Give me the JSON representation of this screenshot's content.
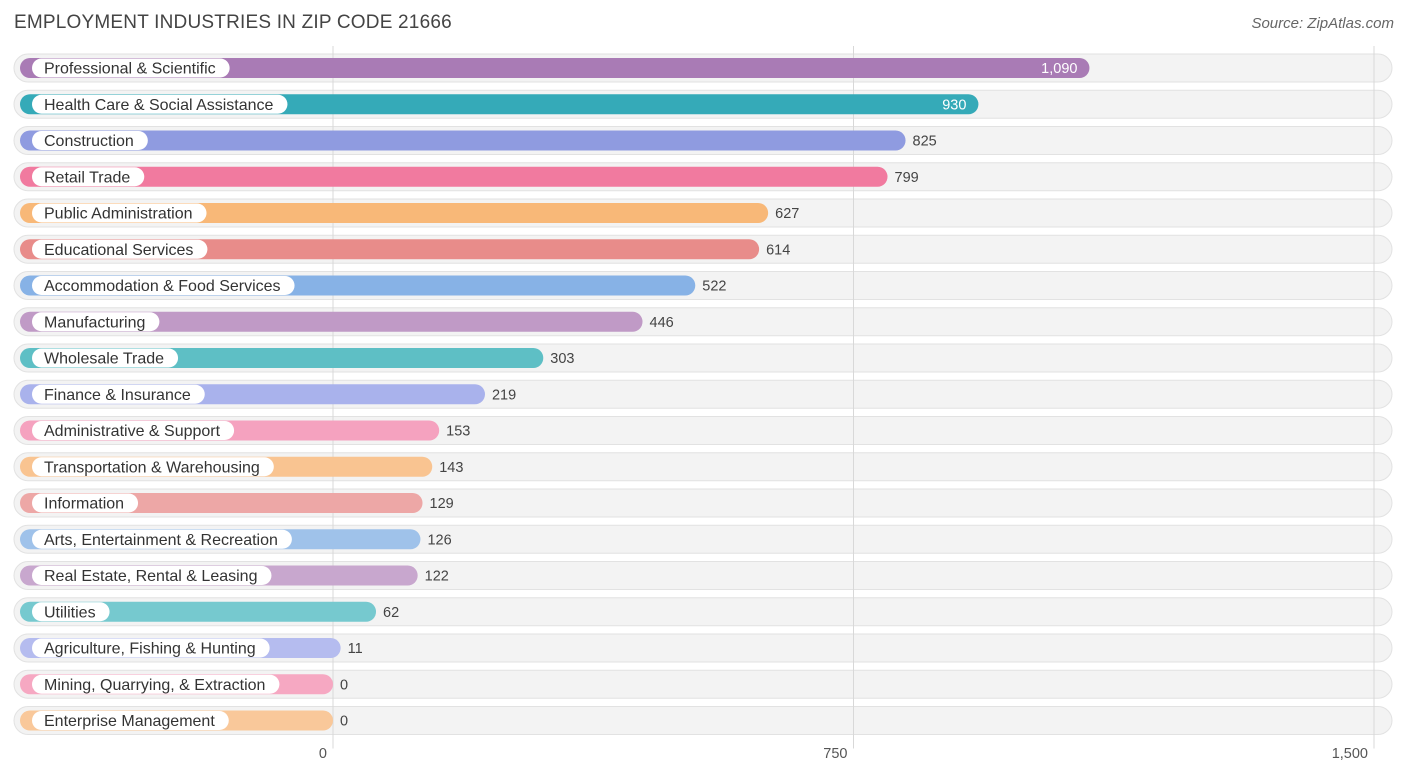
{
  "chart_data": {
    "type": "bar",
    "orientation": "horizontal",
    "title": "EMPLOYMENT INDUSTRIES IN ZIP CODE 21666",
    "source": "Source: ZipAtlas.com",
    "xlim": [
      0,
      1500
    ],
    "ticks": [
      {
        "value": 0,
        "label": "0"
      },
      {
        "value": 750,
        "label": "750"
      },
      {
        "value": 1500,
        "label": "1,500"
      }
    ],
    "categories": [
      "Professional & Scientific",
      "Health Care & Social Assistance",
      "Construction",
      "Retail Trade",
      "Public Administration",
      "Educational Services",
      "Accommodation & Food Services",
      "Manufacturing",
      "Wholesale Trade",
      "Finance & Insurance",
      "Administrative & Support",
      "Transportation & Warehousing",
      "Information",
      "Arts, Entertainment & Recreation",
      "Real Estate, Rental & Leasing",
      "Utilities",
      "Agriculture, Fishing & Hunting",
      "Mining, Quarrying, & Extraction",
      "Enterprise Management"
    ],
    "values": [
      1090,
      930,
      825,
      799,
      627,
      614,
      522,
      446,
      303,
      219,
      153,
      143,
      129,
      126,
      122,
      62,
      11,
      0,
      0
    ],
    "value_labels": [
      "1,090",
      "930",
      "825",
      "799",
      "627",
      "614",
      "522",
      "446",
      "303",
      "219",
      "153",
      "143",
      "129",
      "126",
      "122",
      "62",
      "11",
      "0",
      "0"
    ],
    "colors": [
      "#a97bb5",
      "#35aab8",
      "#8f9be0",
      "#f17a9f",
      "#f8b878",
      "#e88c8a",
      "#87b2e6",
      "#c09ac6",
      "#5ebfc5",
      "#a9b2ec",
      "#f5a2bf",
      "#f9c491",
      "#eda7a6",
      "#9fc2ea",
      "#c8a7ce",
      "#76c9cf",
      "#b5bcef",
      "#f6a8c2",
      "#f9c89a"
    ]
  }
}
